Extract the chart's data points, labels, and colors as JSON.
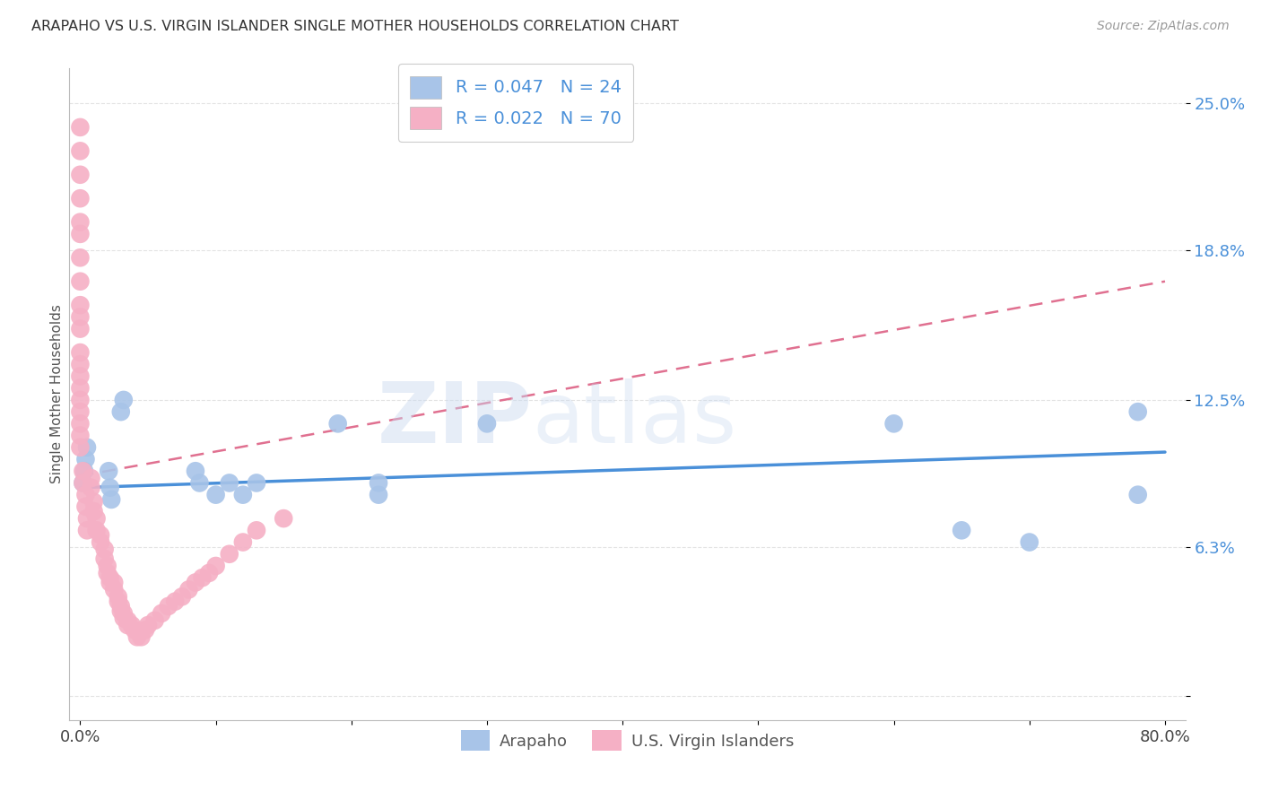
{
  "title": "ARAPAHO VS U.S. VIRGIN ISLANDER SINGLE MOTHER HOUSEHOLDS CORRELATION CHART",
  "source": "Source: ZipAtlas.com",
  "ylabel": "Single Mother Households",
  "blue_color": "#a8c4e8",
  "pink_color": "#f5b0c5",
  "blue_line_color": "#4a90d9",
  "pink_line_color": "#e07090",
  "legend_blue_label": "R = 0.047   N = 24",
  "legend_pink_label": "R = 0.022   N = 70",
  "watermark": "ZIPatlas",
  "background_color": "#ffffff",
  "grid_color": "#e0e0e0",
  "arapaho_x": [
    0.002,
    0.003,
    0.004,
    0.005,
    0.021,
    0.022,
    0.023,
    0.03,
    0.032,
    0.085,
    0.088,
    0.1,
    0.11,
    0.12,
    0.13,
    0.19,
    0.22,
    0.22,
    0.3,
    0.6,
    0.65,
    0.7,
    0.78,
    0.78
  ],
  "arapaho_y": [
    0.09,
    0.095,
    0.1,
    0.105,
    0.095,
    0.088,
    0.083,
    0.12,
    0.125,
    0.095,
    0.09,
    0.085,
    0.09,
    0.085,
    0.09,
    0.115,
    0.085,
    0.09,
    0.115,
    0.115,
    0.07,
    0.065,
    0.085,
    0.12
  ],
  "virgin_x": [
    0.0,
    0.0,
    0.0,
    0.0,
    0.0,
    0.0,
    0.0,
    0.0,
    0.0,
    0.0,
    0.0,
    0.0,
    0.0,
    0.0,
    0.0,
    0.0,
    0.0,
    0.0,
    0.0,
    0.0,
    0.002,
    0.002,
    0.004,
    0.004,
    0.005,
    0.005,
    0.008,
    0.008,
    0.01,
    0.01,
    0.012,
    0.012,
    0.015,
    0.015,
    0.018,
    0.018,
    0.02,
    0.02,
    0.022,
    0.022,
    0.025,
    0.025,
    0.028,
    0.028,
    0.03,
    0.03,
    0.032,
    0.032,
    0.035,
    0.035,
    0.038,
    0.04,
    0.042,
    0.045,
    0.048,
    0.05,
    0.055,
    0.06,
    0.065,
    0.07,
    0.075,
    0.08,
    0.085,
    0.09,
    0.095,
    0.1,
    0.11,
    0.12,
    0.13,
    0.15
  ],
  "virgin_y": [
    0.24,
    0.23,
    0.22,
    0.21,
    0.2,
    0.195,
    0.185,
    0.175,
    0.165,
    0.16,
    0.155,
    0.145,
    0.14,
    0.135,
    0.13,
    0.125,
    0.12,
    0.115,
    0.11,
    0.105,
    0.095,
    0.09,
    0.085,
    0.08,
    0.075,
    0.07,
    0.092,
    0.088,
    0.082,
    0.078,
    0.075,
    0.07,
    0.068,
    0.065,
    0.062,
    0.058,
    0.055,
    0.052,
    0.05,
    0.048,
    0.048,
    0.045,
    0.042,
    0.04,
    0.038,
    0.036,
    0.035,
    0.033,
    0.032,
    0.03,
    0.03,
    0.028,
    0.025,
    0.025,
    0.028,
    0.03,
    0.032,
    0.035,
    0.038,
    0.04,
    0.042,
    0.045,
    0.048,
    0.05,
    0.052,
    0.055,
    0.06,
    0.065,
    0.07,
    0.075
  ],
  "ytick_positions": [
    0.0,
    0.063,
    0.125,
    0.188,
    0.25
  ],
  "ytick_labels": [
    "",
    "6.3%",
    "12.5%",
    "18.8%",
    "25.0%"
  ],
  "xtick_positions": [
    0.0,
    0.1,
    0.2,
    0.3,
    0.4,
    0.5,
    0.6,
    0.7,
    0.8
  ],
  "xticklabels": [
    "0.0%",
    "",
    "",
    "",
    "",
    "",
    "",
    "",
    "80.0%"
  ]
}
